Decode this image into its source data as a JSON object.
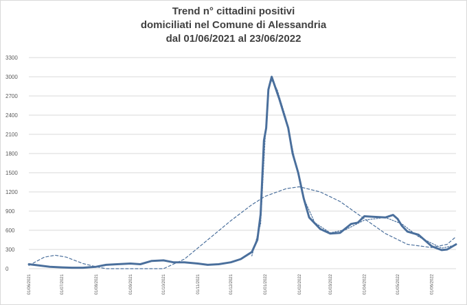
{
  "title_lines": [
    "Trend n° cittadini positivi",
    "domiciliati nel Comune di Alessandria",
    "dal 01/06/2021 al 23/06/2022"
  ],
  "chart_data": {
    "type": "line",
    "title": "Trend n° cittadini positivi domiciliati nel Comune di Alessandria dal 01/06/2021 al 23/06/2022",
    "xlabel": "",
    "ylabel": "",
    "x_range": [
      "2021-06-01",
      "2022-06-23"
    ],
    "ylim": [
      0,
      3300
    ],
    "y_ticks": [
      0,
      300,
      600,
      900,
      1200,
      1500,
      1800,
      2100,
      2400,
      2700,
      3000,
      3300
    ],
    "x_ticks": [
      "01/06/2021",
      "01/07/2021",
      "01/08/2021",
      "01/09/2021",
      "01/10/2021",
      "01/11/2021",
      "01/12/2021",
      "01/01/2022",
      "01/02/2022",
      "01/03/2022",
      "01/04/2022",
      "01/05/2022",
      "01/06/2022"
    ],
    "grid": "horizontal",
    "legend": "none",
    "colors": {
      "series": "#4a6f9c",
      "trend": "#4a6f9c",
      "grid": "#d9d9d9",
      "axis_text": "#595959"
    },
    "series": [
      {
        "style": "solid",
        "points": [
          [
            "2021-06-01",
            70
          ],
          [
            "2021-06-10",
            50
          ],
          [
            "2021-06-20",
            30
          ],
          [
            "2021-07-01",
            20
          ],
          [
            "2021-07-10",
            15
          ],
          [
            "2021-07-20",
            15
          ],
          [
            "2021-08-01",
            30
          ],
          [
            "2021-08-10",
            60
          ],
          [
            "2021-08-20",
            70
          ],
          [
            "2021-09-01",
            80
          ],
          [
            "2021-09-10",
            70
          ],
          [
            "2021-09-20",
            120
          ],
          [
            "2021-10-01",
            130
          ],
          [
            "2021-10-10",
            100
          ],
          [
            "2021-10-20",
            100
          ],
          [
            "2021-11-01",
            80
          ],
          [
            "2021-11-10",
            60
          ],
          [
            "2021-11-20",
            70
          ],
          [
            "2021-12-01",
            100
          ],
          [
            "2021-12-10",
            150
          ],
          [
            "2021-12-20",
            260
          ],
          [
            "2021-12-25",
            450
          ],
          [
            "2021-12-28",
            850
          ],
          [
            "2021-12-31",
            2000
          ],
          [
            "2022-01-02",
            2200
          ],
          [
            "2022-01-04",
            2800
          ],
          [
            "2022-01-07",
            3000
          ],
          [
            "2022-01-10",
            2850
          ],
          [
            "2022-01-14",
            2650
          ],
          [
            "2022-01-18",
            2420
          ],
          [
            "2022-01-22",
            2200
          ],
          [
            "2022-01-26",
            1800
          ],
          [
            "2022-01-31",
            1500
          ],
          [
            "2022-02-05",
            1100
          ],
          [
            "2022-02-10",
            800
          ],
          [
            "2022-02-20",
            620
          ],
          [
            "2022-03-01",
            550
          ],
          [
            "2022-03-10",
            560
          ],
          [
            "2022-03-20",
            700
          ],
          [
            "2022-03-26",
            720
          ],
          [
            "2022-04-01",
            820
          ],
          [
            "2022-04-10",
            810
          ],
          [
            "2022-04-20",
            800
          ],
          [
            "2022-04-27",
            840
          ],
          [
            "2022-05-01",
            780
          ],
          [
            "2022-05-05",
            670
          ],
          [
            "2022-05-10",
            580
          ],
          [
            "2022-05-20",
            530
          ],
          [
            "2022-06-01",
            350
          ],
          [
            "2022-06-10",
            290
          ],
          [
            "2022-06-15",
            300
          ],
          [
            "2022-06-23",
            380
          ]
        ]
      },
      {
        "style": "dashed",
        "points": [
          [
            "2021-06-01",
            50
          ],
          [
            "2021-06-15",
            180
          ],
          [
            "2021-06-25",
            210
          ],
          [
            "2021-07-05",
            180
          ],
          [
            "2021-07-20",
            80
          ],
          [
            "2021-08-01",
            30
          ],
          [
            "2021-08-10",
            0
          ],
          [
            "2021-10-01",
            0
          ],
          [
            "2021-10-20",
            150
          ],
          [
            "2021-11-10",
            450
          ],
          [
            "2021-12-01",
            750
          ],
          [
            "2021-12-20",
            1000
          ],
          [
            "2022-01-01",
            1130
          ],
          [
            "2022-01-20",
            1250
          ],
          [
            "2022-02-01",
            1280
          ],
          [
            "2022-02-20",
            1200
          ],
          [
            "2022-03-10",
            1050
          ],
          [
            "2022-04-01",
            780
          ],
          [
            "2022-04-20",
            550
          ],
          [
            "2022-05-10",
            380
          ],
          [
            "2022-06-01",
            330
          ],
          [
            "2022-06-15",
            380
          ],
          [
            "2022-06-23",
            500
          ]
        ]
      },
      {
        "style": "dotted",
        "points": [
          [
            "2021-12-20",
            200
          ],
          [
            "2021-12-28",
            700
          ],
          [
            "2022-01-01",
            2000
          ],
          [
            "2022-01-04",
            2800
          ],
          [
            "2022-01-07",
            2950
          ],
          [
            "2022-01-12",
            2800
          ],
          [
            "2022-01-20",
            2350
          ],
          [
            "2022-01-28",
            1700
          ],
          [
            "2022-02-05",
            1100
          ],
          [
            "2022-02-15",
            720
          ],
          [
            "2022-03-01",
            560
          ],
          [
            "2022-03-15",
            610
          ],
          [
            "2022-04-01",
            760
          ],
          [
            "2022-04-20",
            800
          ],
          [
            "2022-05-05",
            700
          ],
          [
            "2022-05-20",
            500
          ],
          [
            "2022-06-10",
            320
          ],
          [
            "2022-06-23",
            370
          ]
        ]
      }
    ]
  }
}
